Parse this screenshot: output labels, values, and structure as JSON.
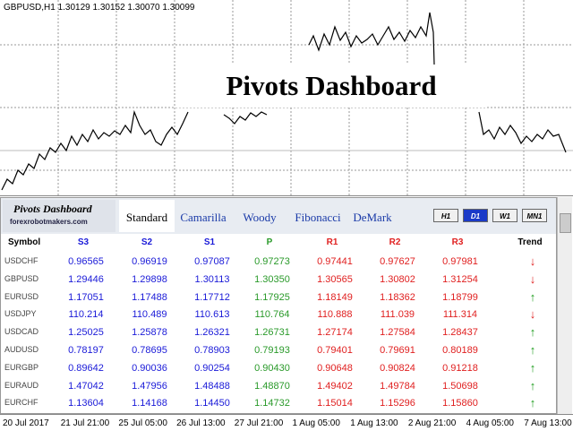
{
  "chart_header": "GBPUSD,H1  1.30129 1.30152 1.30070 1.30099",
  "overlay_title": "Pivots Dashboard",
  "panel": {
    "logo_title": "Pivots Dashboard",
    "logo_site": "forexrobotmakers.com",
    "tabs": [
      "Standard",
      "Camarilla",
      "Woody",
      "Fibonacci",
      "DeMark"
    ],
    "timeframes": [
      "H1",
      "D1",
      "W1",
      "MN1"
    ],
    "columns": [
      "Symbol",
      "S3",
      "S2",
      "S1",
      "P",
      "R1",
      "R2",
      "R3",
      "Trend"
    ],
    "column_colors": [
      "#000000",
      "#1a1ad8",
      "#1a1ad8",
      "#1a1ad8",
      "#2a9a2a",
      "#e02020",
      "#e02020",
      "#e02020",
      "#000000"
    ],
    "trend_colors": {
      "↑": "#1a9c1a",
      "↓": "#e02020"
    },
    "rows": [
      [
        "USDCHF",
        "0.96565",
        "0.96919",
        "0.97087",
        "0.97273",
        "0.97441",
        "0.97627",
        "0.97981",
        "↓"
      ],
      [
        "GBPUSD",
        "1.29446",
        "1.29898",
        "1.30113",
        "1.30350",
        "1.30565",
        "1.30802",
        "1.31254",
        "↓"
      ],
      [
        "EURUSD",
        "1.17051",
        "1.17488",
        "1.17712",
        "1.17925",
        "1.18149",
        "1.18362",
        "1.18799",
        "↑"
      ],
      [
        "USDJPY",
        "110.214",
        "110.489",
        "110.613",
        "110.764",
        "110.888",
        "111.039",
        "111.314",
        "↓"
      ],
      [
        "USDCAD",
        "1.25025",
        "1.25878",
        "1.26321",
        "1.26731",
        "1.27174",
        "1.27584",
        "1.28437",
        "↑"
      ],
      [
        "AUDUSD",
        "0.78197",
        "0.78695",
        "0.78903",
        "0.79193",
        "0.79401",
        "0.79691",
        "0.80189",
        "↑"
      ],
      [
        "EURGBP",
        "0.89642",
        "0.90036",
        "0.90254",
        "0.90430",
        "0.90648",
        "0.90824",
        "0.91218",
        "↑"
      ],
      [
        "EURAUD",
        "1.47042",
        "1.47956",
        "1.48488",
        "1.48870",
        "1.49402",
        "1.49784",
        "1.50698",
        "↑"
      ],
      [
        "EURCHF",
        "1.13604",
        "1.14168",
        "1.14450",
        "1.14732",
        "1.15014",
        "1.15296",
        "1.15860",
        "↑"
      ]
    ]
  },
  "x_axis": [
    "20 Jul 2017",
    "21 Jul 21:00",
    "25 Jul 05:00",
    "26 Jul 13:00",
    "27 Jul 21:00",
    "1 Aug 05:00",
    "1 Aug 13:00",
    "2 Aug 21:00",
    "4 Aug 05:00",
    "7 Aug 13:00"
  ]
}
